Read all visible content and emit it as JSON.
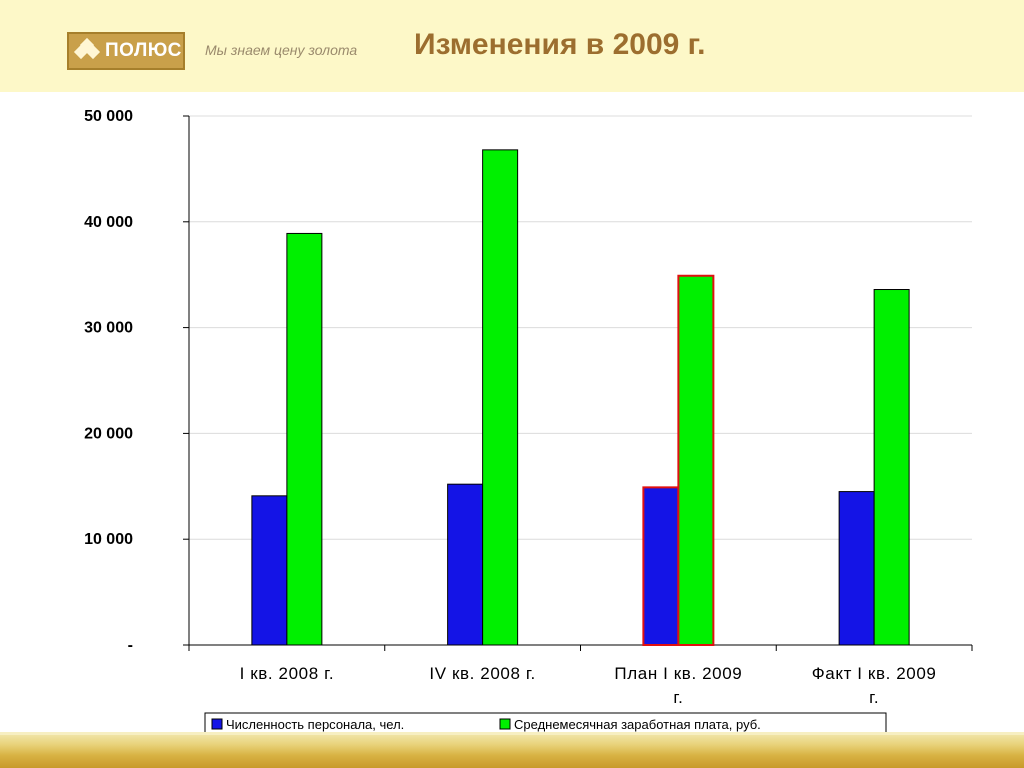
{
  "header": {
    "logo_text": "ПОЛЮС",
    "slogan": "Мы знаем цену золота",
    "title": "Изменения в  2009 г."
  },
  "chart_data": {
    "type": "bar",
    "categories": [
      [
        "I кв. 2008 г."
      ],
      [
        "IV кв. 2008 г."
      ],
      [
        "План I кв. 2009",
        "г."
      ],
      [
        "Факт I кв. 2009",
        "г."
      ]
    ],
    "series": [
      {
        "name": "Численность персонала, чел.",
        "values": [
          14100,
          15200,
          14900,
          14500
        ],
        "color": "#1414e6"
      },
      {
        "name": "Среднемесячная заработная плата, руб.",
        "values": [
          38900,
          46800,
          34900,
          33600
        ],
        "color": "#00f000"
      }
    ],
    "highlight_category": 2,
    "highlight_color": "#e01010",
    "ylim": [
      0,
      50000
    ],
    "yticks": [
      0,
      10000,
      20000,
      30000,
      40000,
      50000
    ],
    "ytick_labels": [
      "-",
      "10 000",
      "20 000",
      "30 000",
      "40 000",
      "50 000"
    ],
    "grid": true,
    "legend_position": "bottom"
  }
}
